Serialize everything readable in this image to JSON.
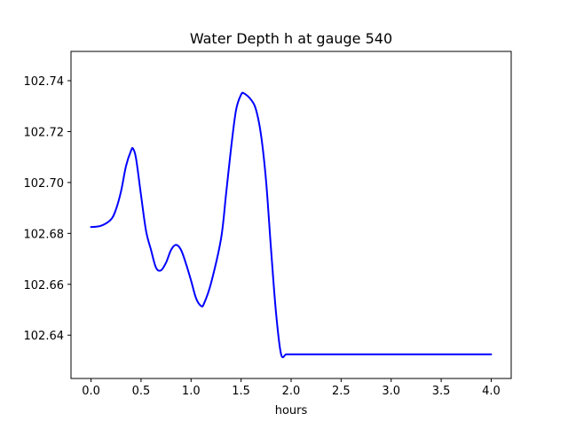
{
  "chart_data": {
    "type": "line",
    "title": "Water Depth h at gauge 540",
    "xlabel": "hours",
    "ylabel": "",
    "xlim": [
      -0.2,
      4.2
    ],
    "ylim": [
      102.623,
      102.7515
    ],
    "xticks": [
      0.0,
      0.5,
      1.0,
      1.5,
      2.0,
      2.5,
      3.0,
      3.5,
      4.0
    ],
    "xtick_labels": [
      "0.0",
      "0.5",
      "1.0",
      "1.5",
      "2.0",
      "2.5",
      "3.0",
      "3.5",
      "4.0"
    ],
    "yticks": [
      102.64,
      102.66,
      102.68,
      102.7,
      102.72,
      102.74
    ],
    "ytick_labels": [
      "102.64",
      "102.66",
      "102.68",
      "102.70",
      "102.72",
      "102.74"
    ],
    "grid": false,
    "series": [
      {
        "color": "#0000ff",
        "x": [
          0.0,
          0.1,
          0.2,
          0.25,
          0.3,
          0.35,
          0.4,
          0.42,
          0.45,
          0.5,
          0.55,
          0.6,
          0.65,
          0.7,
          0.75,
          0.8,
          0.85,
          0.9,
          0.95,
          1.0,
          1.05,
          1.1,
          1.13,
          1.2,
          1.3,
          1.35,
          1.4,
          1.45,
          1.5,
          1.53,
          1.6,
          1.65,
          1.7,
          1.75,
          1.8,
          1.85,
          1.9,
          1.95,
          2.0,
          2.05,
          2.1,
          2.13,
          2.18,
          2.25,
          2.3,
          2.35,
          2.4,
          2.45,
          2.5,
          2.54,
          2.6,
          2.65,
          2.7,
          2.75,
          2.8,
          2.85,
          2.9,
          2.95,
          3.0,
          3.05,
          3.1,
          3.15,
          3.2,
          3.25,
          3.3,
          3.35,
          3.4,
          3.45,
          3.5,
          3.55,
          3.6,
          3.65,
          3.7,
          3.75,
          3.8,
          3.85,
          3.9,
          3.95,
          4.0
        ],
        "y": [
          102.6825,
          102.683,
          102.6855,
          102.6895,
          102.6965,
          102.7065,
          102.7125,
          102.7133,
          102.7095,
          102.695,
          102.681,
          102.6735,
          102.6665,
          102.6655,
          102.6685,
          102.6735,
          102.6755,
          102.6735,
          102.668,
          102.6615,
          102.6545,
          102.6515,
          102.6525,
          102.6605,
          102.678,
          102.6955,
          102.7135,
          102.7285,
          102.7345,
          102.735,
          102.7325,
          102.7285,
          102.7185,
          102.7005,
          102.6735,
          102.6485,
          102.6325,
          102.6325,
          102.6325,
          102.6325,
          102.6325,
          102.6325,
          102.6325,
          102.6325,
          102.6325,
          102.6325,
          102.6325,
          102.6325,
          102.6325,
          102.6325,
          102.6325,
          102.6325,
          102.6325,
          102.6325,
          102.6325,
          102.6325,
          102.6325,
          102.6325,
          102.6325,
          102.6325,
          102.6325,
          102.6325,
          102.6325,
          102.6325,
          102.6325,
          102.6325,
          102.6325,
          102.6325,
          102.6325,
          102.6325,
          102.6325,
          102.6325,
          102.6325,
          102.6325,
          102.6325,
          102.6325,
          102.6325,
          102.6325,
          102.6325
        ]
      }
    ]
  }
}
